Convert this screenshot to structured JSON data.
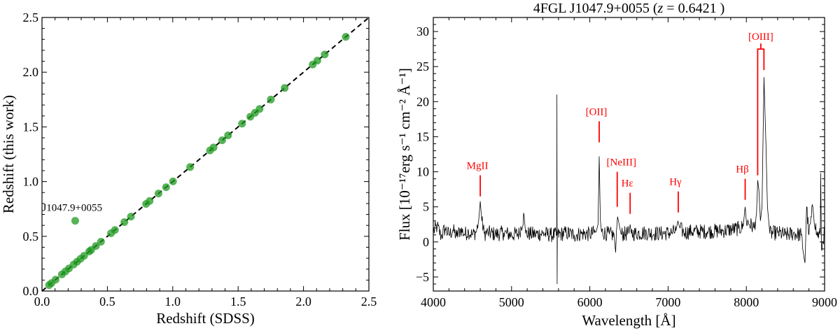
{
  "chart_data": [
    {
      "type": "scatter",
      "xlabel": "Redshift (SDSS)",
      "ylabel": "Redshift (this work)",
      "xlim": [
        0,
        2.5
      ],
      "ylim": [
        0,
        2.5
      ],
      "xticks": [
        "0.0",
        "0.5",
        "1.0",
        "1.5",
        "2.0",
        "2.5"
      ],
      "yticks": [
        "0.0",
        "0.5",
        "1.0",
        "1.5",
        "2.0",
        "2.5"
      ],
      "grid": false,
      "reference_line": "y = x (dashed)",
      "point_color": "#1f9a1f",
      "points": [
        [
          0.054,
          0.054
        ],
        [
          0.072,
          0.072
        ],
        [
          0.104,
          0.104
        ],
        [
          0.152,
          0.152
        ],
        [
          0.179,
          0.179
        ],
        [
          0.206,
          0.206
        ],
        [
          0.242,
          0.242
        ],
        [
          0.268,
          0.268
        ],
        [
          0.295,
          0.295
        ],
        [
          0.322,
          0.322
        ],
        [
          0.361,
          0.361
        ],
        [
          0.376,
          0.376
        ],
        [
          0.412,
          0.412
        ],
        [
          0.451,
          0.451
        ],
        [
          0.528,
          0.528
        ],
        [
          0.558,
          0.558
        ],
        [
          0.63,
          0.63
        ],
        [
          0.68,
          0.68
        ],
        [
          0.796,
          0.796
        ],
        [
          0.823,
          0.823
        ],
        [
          0.891,
          0.891
        ],
        [
          0.949,
          0.949
        ],
        [
          1.002,
          1.002
        ],
        [
          1.133,
          1.133
        ],
        [
          1.285,
          1.285
        ],
        [
          1.312,
          1.312
        ],
        [
          1.378,
          1.378
        ],
        [
          1.423,
          1.423
        ],
        [
          1.53,
          1.53
        ],
        [
          1.593,
          1.593
        ],
        [
          1.629,
          1.629
        ],
        [
          1.664,
          1.664
        ],
        [
          1.75,
          1.75
        ],
        [
          1.856,
          1.856
        ],
        [
          2.07,
          2.07
        ],
        [
          2.106,
          2.106
        ],
        [
          2.162,
          2.162
        ],
        [
          2.323,
          2.323
        ]
      ],
      "outlier": {
        "x": 0.254,
        "y": 0.6421,
        "label": "J1047.9+0055"
      }
    },
    {
      "type": "line",
      "title_prefix": "4FGL J1047.9+0055 (",
      "title_var": "z",
      "title_suffix": " = 0.6421 )",
      "xlabel": "Wavelength [Å]",
      "ylabel": "Flux [10⁻¹⁷erg s⁻¹ cm⁻² Å⁻¹]",
      "xlim": [
        4000,
        9000
      ],
      "ylim": [
        -7,
        32
      ],
      "xticks": [
        "4000",
        "5000",
        "6000",
        "7000",
        "8000",
        "9000"
      ],
      "yticks": [
        "−5",
        "0",
        "5",
        "10",
        "15",
        "20",
        "25",
        "30"
      ],
      "grid": false,
      "line_color": "#000000",
      "marker_color": "#ff0000",
      "noise_amplitude": 1.1,
      "spectrum": [
        [
          4000,
          1.5
        ],
        [
          4050,
          2.2
        ],
        [
          4100,
          0.8
        ],
        [
          4150,
          1.9
        ],
        [
          4200,
          1.0
        ],
        [
          4250,
          1.7
        ],
        [
          4300,
          0.8
        ],
        [
          4350,
          1.8
        ],
        [
          4400,
          1.1
        ],
        [
          4450,
          1.5
        ],
        [
          4500,
          1.0
        ],
        [
          4550,
          1.5
        ],
        [
          4580,
          3.0
        ],
        [
          4600,
          5.8
        ],
        [
          4620,
          3.0
        ],
        [
          4650,
          1.2
        ],
        [
          4700,
          1.3
        ],
        [
          4800,
          1.1
        ],
        [
          4900,
          1.3
        ],
        [
          5000,
          1.0
        ],
        [
          5100,
          1.2
        ],
        [
          5160,
          3.8
        ],
        [
          5180,
          1.2
        ],
        [
          5300,
          1.1
        ],
        [
          5400,
          1.2
        ],
        [
          5500,
          1.0
        ],
        [
          5578,
          1.0
        ],
        [
          5580,
          21.0
        ],
        [
          5582,
          -6.0
        ],
        [
          5585,
          1.0
        ],
        [
          5700,
          1.3
        ],
        [
          5800,
          1.0
        ],
        [
          5900,
          1.2
        ],
        [
          6000,
          1.1
        ],
        [
          6080,
          1.4
        ],
        [
          6105,
          2.5
        ],
        [
          6120,
          12.2
        ],
        [
          6135,
          3.0
        ],
        [
          6150,
          1.4
        ],
        [
          6250,
          1.1
        ],
        [
          6310,
          1.0
        ],
        [
          6330,
          -1.5
        ],
        [
          6340,
          1.5
        ],
        [
          6355,
          3.6
        ],
        [
          6375,
          2.5
        ],
        [
          6400,
          1.1
        ],
        [
          6500,
          1.2
        ],
        [
          6515,
          2.5
        ],
        [
          6530,
          1.2
        ],
        [
          6700,
          1.3
        ],
        [
          6900,
          1.2
        ],
        [
          7050,
          1.3
        ],
        [
          7100,
          1.6
        ],
        [
          7125,
          3.0
        ],
        [
          7150,
          2.0
        ],
        [
          7200,
          1.3
        ],
        [
          7300,
          1.5
        ],
        [
          7500,
          1.5
        ],
        [
          7700,
          1.6
        ],
        [
          7900,
          1.9
        ],
        [
          7960,
          2.2
        ],
        [
          7985,
          5.0
        ],
        [
          8000,
          3.0
        ],
        [
          8100,
          2.0
        ],
        [
          8130,
          4.0
        ],
        [
          8145,
          8.8
        ],
        [
          8160,
          7.5
        ],
        [
          8180,
          3.0
        ],
        [
          8200,
          5.0
        ],
        [
          8225,
          23.5
        ],
        [
          8240,
          18.0
        ],
        [
          8250,
          14.0
        ],
        [
          8270,
          5.0
        ],
        [
          8290,
          2.5
        ],
        [
          8300,
          1.2
        ],
        [
          8400,
          1.3
        ],
        [
          8500,
          1.0
        ],
        [
          8600,
          1.2
        ],
        [
          8700,
          1.0
        ],
        [
          8750,
          -3.0
        ],
        [
          8770,
          5.0
        ],
        [
          8800,
          1.0
        ],
        [
          8850,
          5.0
        ],
        [
          8900,
          1.0
        ],
        [
          8945,
          1.0
        ],
        [
          8950,
          9.8
        ],
        [
          8960,
          -1.0
        ],
        [
          9000,
          1.5
        ]
      ],
      "line_markers": [
        {
          "label": "MgII",
          "wavelength": 4600,
          "y_from": 6.5,
          "y_to": 9.5
        },
        {
          "label": "[OII]",
          "wavelength": 6120,
          "y_from": 14.2,
          "y_to": 17.2
        },
        {
          "label": "[NeIII]",
          "wavelength": 6350,
          "y_from": 5.0,
          "y_to": 10.0
        },
        {
          "label": "Hε",
          "wavelength": 6515,
          "y_from": 4.0,
          "y_to": 7.0
        },
        {
          "label": "Hγ",
          "wavelength": 7130,
          "y_from": 4.2,
          "y_to": 7.2
        },
        {
          "label": "Hβ",
          "wavelength": 7985,
          "y_from": 6.0,
          "y_to": 9.0
        }
      ],
      "bracket_marker": {
        "label": "[OIII]",
        "wavelengths": [
          8145,
          8225
        ],
        "y_from": [
          9.5,
          24.5
        ],
        "y_top": 27.5,
        "y_stem": 28.3
      }
    }
  ]
}
